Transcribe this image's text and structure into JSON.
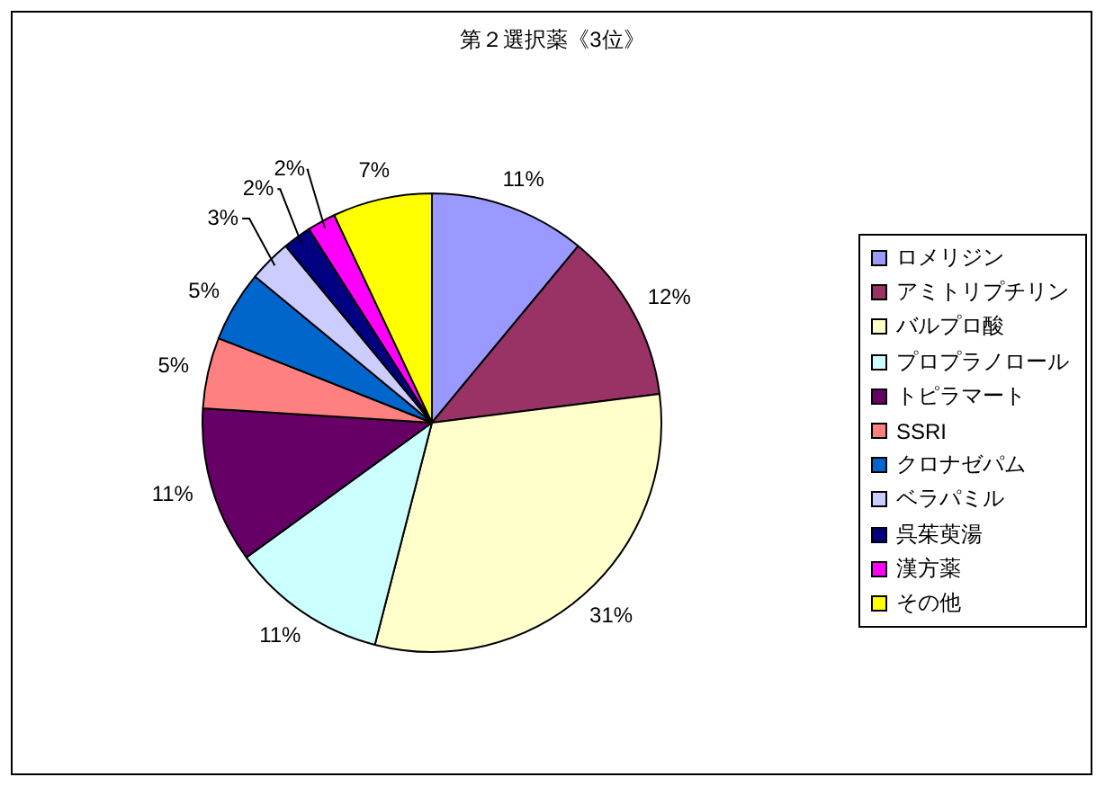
{
  "chart_data": {
    "type": "pie",
    "title": "第２選択薬《3位》",
    "categories": [
      "ロメリジン",
      "アミトリプチリン",
      "バルプロ酸",
      "プロプラノロール",
      "トピラマート",
      "SSRI",
      "クロナゼパム",
      "ベラパミル",
      "呉茱萸湯",
      "漢方薬",
      "その他"
    ],
    "values": [
      11,
      12,
      31,
      11,
      11,
      5,
      5,
      3,
      2,
      2,
      7
    ],
    "colors": [
      "#9999ff",
      "#993366",
      "#ffffcc",
      "#ccffff",
      "#660066",
      "#ff8080",
      "#0066cc",
      "#ccccff",
      "#000080",
      "#ff00ff",
      "#ffff00"
    ],
    "value_labels": [
      "11%",
      "12%",
      "31%",
      "11%",
      "11%",
      "5%",
      "5%",
      "3%",
      "2%",
      "2%",
      "7%"
    ],
    "legend": "right"
  }
}
